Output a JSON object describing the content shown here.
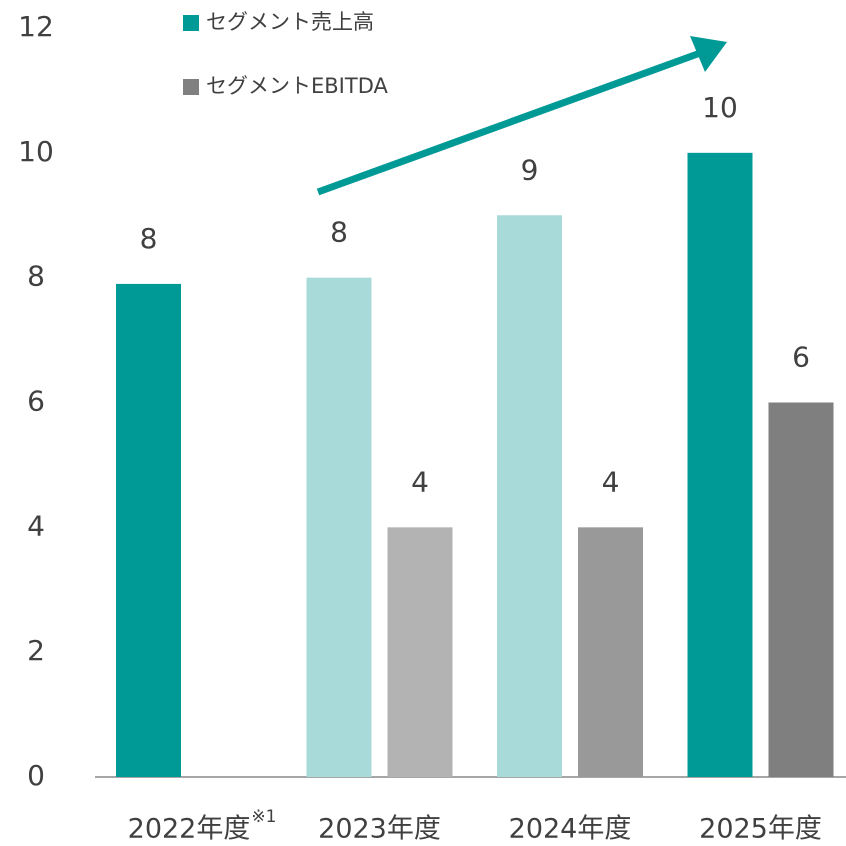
{
  "chart_data": {
    "type": "bar",
    "categories": [
      "2022年度",
      "2023年度",
      "2024年度",
      "2025年度"
    ],
    "category_superscripts": [
      "※1",
      null,
      null,
      null
    ],
    "series": [
      {
        "name": "セグメント売上高",
        "color": "#009a96",
        "colors": [
          "#009a96",
          "#a8dada",
          "#a8dada",
          "#009a96"
        ],
        "values": [
          7.9,
          8.0,
          9.0,
          10.0
        ],
        "value_labels": [
          "8",
          "8",
          "9",
          "10"
        ]
      },
      {
        "name": "セグメントEBITDA",
        "color": "#808080",
        "colors": [
          null,
          "#b3b3b3",
          "#999999",
          "#7f7f7f"
        ],
        "values": [
          null,
          4.0,
          4.0,
          6.0
        ],
        "value_labels": [
          null,
          "4",
          "4",
          "6"
        ]
      }
    ],
    "ylim": [
      0,
      12
    ],
    "yticks": [
      0,
      2,
      4,
      6,
      8,
      10,
      12
    ],
    "grid": false,
    "legend": "top"
  }
}
